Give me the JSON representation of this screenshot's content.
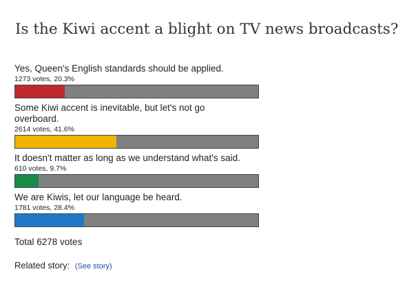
{
  "poll": {
    "title": "Is the Kiwi accent a blight on TV news broadcasts?",
    "options": [
      {
        "label": "Yes, Queen's English standards should be applied.",
        "votes_text": "1273 votes, 20.3%",
        "percent": 20.3,
        "color": "#c0282c"
      },
      {
        "label": "Some Kiwi accent is inevitable, but let's not go overboard.",
        "votes_text": "2614 votes, 41.6%",
        "percent": 41.6,
        "color": "#f0b400"
      },
      {
        "label": "It doesn't matter as long as we understand what's said.",
        "votes_text": "610 votes, 9.7%",
        "percent": 9.7,
        "color": "#1a8a4a"
      },
      {
        "label": "We are Kiwis, let our language be heard.",
        "votes_text": "1781 votes, 28.4%",
        "percent": 28.4,
        "color": "#1f78c8"
      }
    ],
    "total_text": "Total 6278 votes"
  },
  "related": {
    "label": "Related story:",
    "link_text": "(See story)"
  },
  "colors": {
    "bar_track": "#808080",
    "link": "#1f4e96"
  }
}
